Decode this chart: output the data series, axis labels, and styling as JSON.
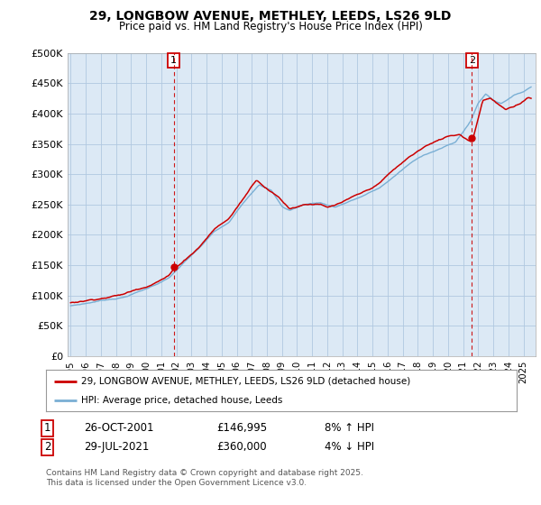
{
  "title_line1": "29, LONGBOW AVENUE, METHLEY, LEEDS, LS26 9LD",
  "title_line2": "Price paid vs. HM Land Registry's House Price Index (HPI)",
  "background_color": "#ffffff",
  "plot_bg_color": "#dce9f5",
  "grid_color": "#b0c8e0",
  "red_line_color": "#cc0000",
  "blue_line_color": "#7aafd4",
  "sale1_x": 2001.82,
  "sale1_y": 146995,
  "sale2_x": 2021.58,
  "sale2_y": 360000,
  "legend_red": "29, LONGBOW AVENUE, METHLEY, LEEDS, LS26 9LD (detached house)",
  "legend_blue": "HPI: Average price, detached house, Leeds",
  "table_row1": [
    "1",
    "26-OCT-2001",
    "£146,995",
    "8% ↑ HPI"
  ],
  "table_row2": [
    "2",
    "29-JUL-2021",
    "£360,000",
    "4% ↓ HPI"
  ],
  "footer": "Contains HM Land Registry data © Crown copyright and database right 2025.\nThis data is licensed under the Open Government Licence v3.0.",
  "ylim": [
    0,
    500000
  ],
  "xlim_start": 1994.8,
  "xlim_end": 2025.8,
  "yticks": [
    0,
    50000,
    100000,
    150000,
    200000,
    250000,
    300000,
    350000,
    400000,
    450000,
    500000
  ]
}
